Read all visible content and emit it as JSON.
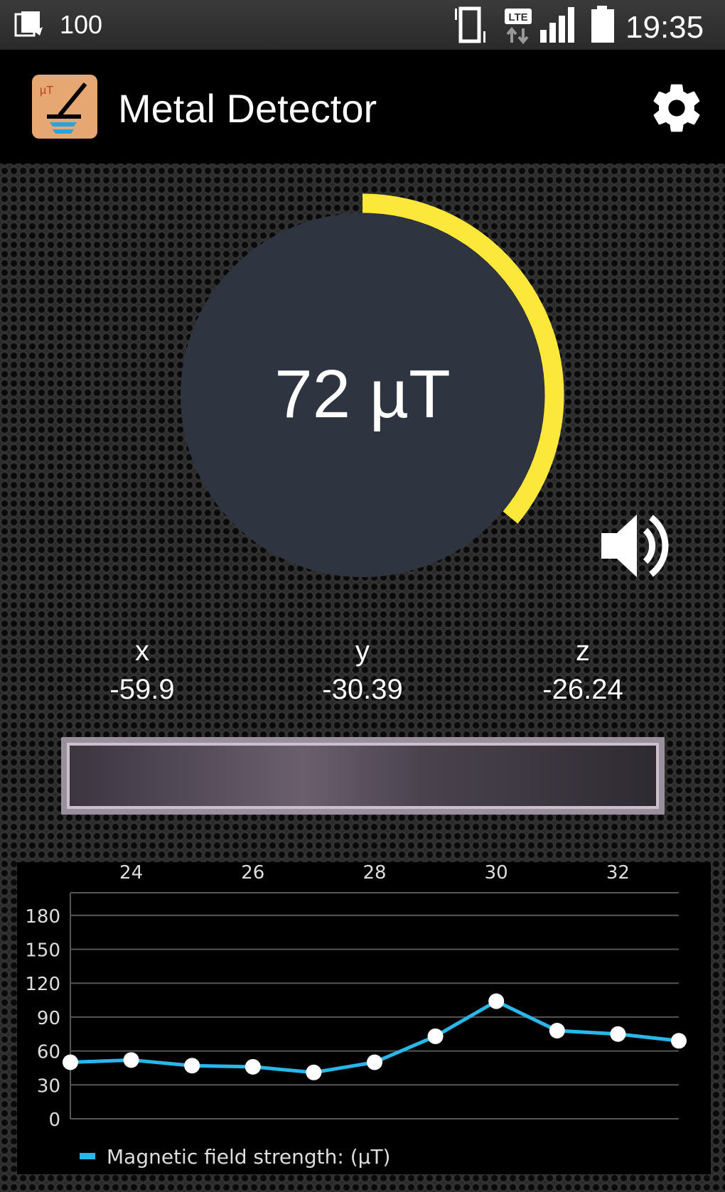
{
  "status_bar": {
    "notification_count": "100",
    "time": "19:35",
    "network": "LTE"
  },
  "app_bar": {
    "title": "Metal Detector",
    "icons": [
      "metal-detector-app-icon",
      "gear-icon"
    ]
  },
  "gauge": {
    "reading": "72 µT",
    "value": 72,
    "max": 200,
    "arc_color": "#fce83a",
    "dial_color": "#2e3440"
  },
  "sound": {
    "icon": "speaker-icon"
  },
  "axes": {
    "x_label": "x",
    "x_value": "-59.9",
    "y_label": "y",
    "y_value": "-30.39",
    "z_label": "z",
    "z_value": "-26.24"
  },
  "chart_data": {
    "type": "line",
    "x": [
      23,
      24,
      25,
      26,
      27,
      28,
      29,
      30,
      31,
      32,
      33
    ],
    "series": [
      {
        "name": "Magnetic field strength:  (µT)",
        "values": [
          50,
          52,
          47,
          46,
          41,
          50,
          73,
          104,
          78,
          75,
          69
        ],
        "color": "#29b6e8"
      }
    ],
    "x_ticks": [
      "24",
      "26",
      "28",
      "30",
      "32"
    ],
    "y_ticks": [
      "0",
      "30",
      "60",
      "90",
      "120",
      "150",
      "180"
    ],
    "xlim": [
      23,
      33
    ],
    "ylim": [
      0,
      200
    ],
    "grid": true,
    "legend": "bottom-left",
    "x_axis_position": "top"
  }
}
